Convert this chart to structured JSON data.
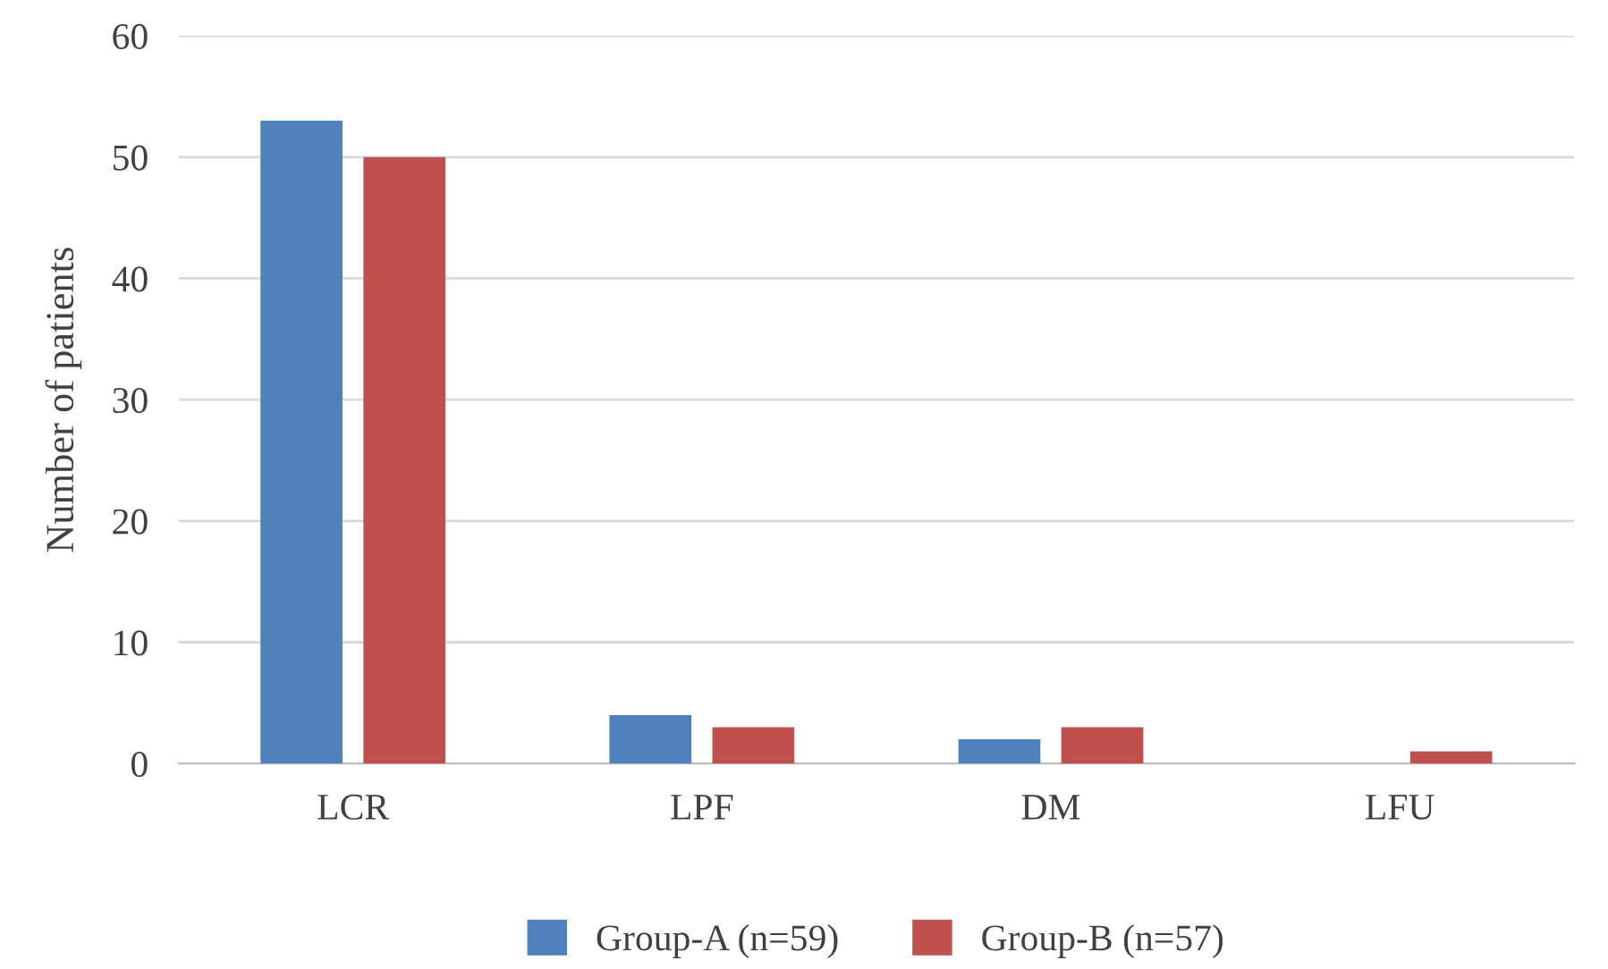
{
  "chart_data": {
    "type": "bar",
    "ylabel": "Number of patients",
    "categories": [
      "LCR",
      "LPF",
      "DM",
      "LFU"
    ],
    "series": [
      {
        "name": "Group-A (n=59)",
        "color": "#4f81bd",
        "values": [
          53,
          4,
          2,
          0
        ]
      },
      {
        "name": "Group-B (n=57)",
        "color": "#c0504d",
        "values": [
          50,
          3,
          3,
          1
        ]
      }
    ],
    "ylim": [
      0,
      60
    ],
    "yticks": [
      0,
      10,
      20,
      30,
      40,
      50,
      60
    ],
    "grid": "y",
    "legend": "bottom"
  }
}
